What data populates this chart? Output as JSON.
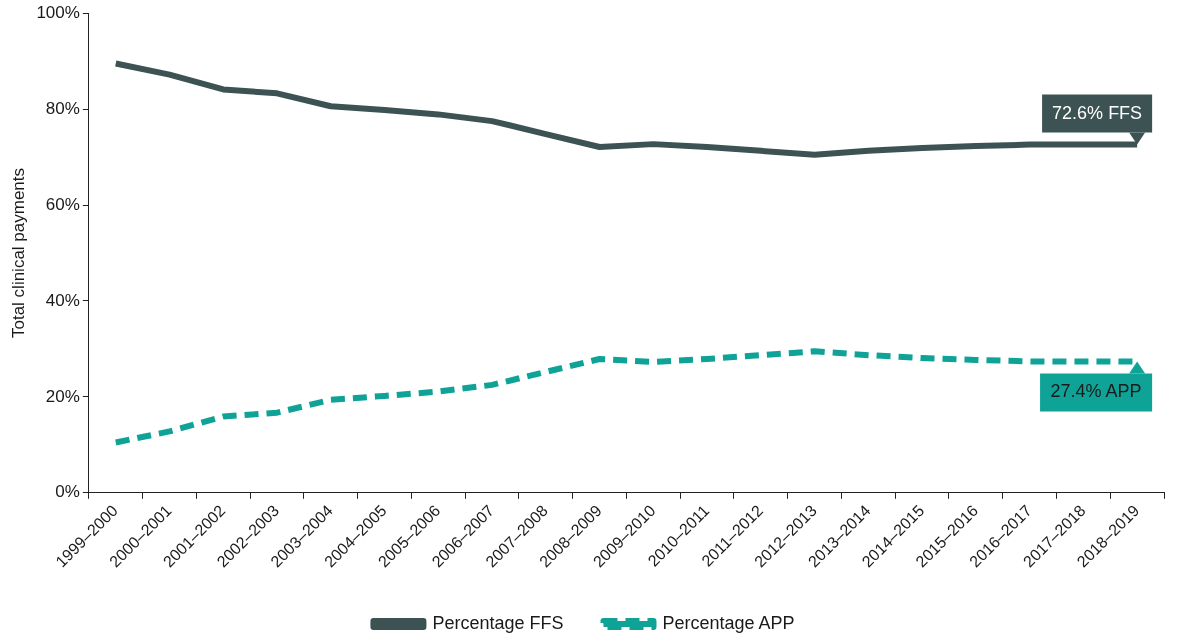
{
  "chart_data": {
    "type": "line",
    "ylabel": "Total clinical payments",
    "categories": [
      "1999–2000",
      "2000–2001",
      "2001–2002",
      "2002–2003",
      "2003–2004",
      "2004–2005",
      "2005–2006",
      "2006–2007",
      "2007–2008",
      "2008–2009",
      "2009–2010",
      "2010–2011",
      "2011–2012",
      "2012–2013",
      "2013–2014",
      "2014–2015",
      "2015–2016",
      "2016–2017",
      "2017–2018",
      "2018–2019"
    ],
    "series": [
      {
        "name": "Percentage FFS",
        "color": "#3d5253",
        "line_style": "solid",
        "values": [
          89.5,
          87.2,
          84.1,
          83.3,
          80.6,
          79.8,
          78.9,
          77.5,
          74.8,
          72.1,
          72.7,
          72.1,
          71.3,
          70.5,
          71.3,
          71.9,
          72.3,
          72.6,
          72.6,
          72.6
        ]
      },
      {
        "name": "Percentage APP",
        "color": "#0fa397",
        "line_style": "dashed",
        "values": [
          10.5,
          12.8,
          15.9,
          16.7,
          19.4,
          20.2,
          21.1,
          22.5,
          25.2,
          27.9,
          27.3,
          27.9,
          28.7,
          29.5,
          28.7,
          28.1,
          27.7,
          27.4,
          27.4,
          27.4
        ]
      }
    ],
    "ylim": [
      0,
      100
    ],
    "yticks": [
      {
        "value": 0,
        "label": "0%"
      },
      {
        "value": 20,
        "label": "20%"
      },
      {
        "value": 40,
        "label": "40%"
      },
      {
        "value": 60,
        "label": "60%"
      },
      {
        "value": 80,
        "label": "80%"
      },
      {
        "value": 100,
        "label": "100%"
      }
    ],
    "grid": false,
    "legend": "bottom",
    "marker": "none",
    "annotations": [
      {
        "text": "72.6% FFS",
        "x": "2018–2019",
        "y": 72.6
      },
      {
        "text": "27.4% APP",
        "x": "2018–2019",
        "y": 27.4
      }
    ]
  }
}
